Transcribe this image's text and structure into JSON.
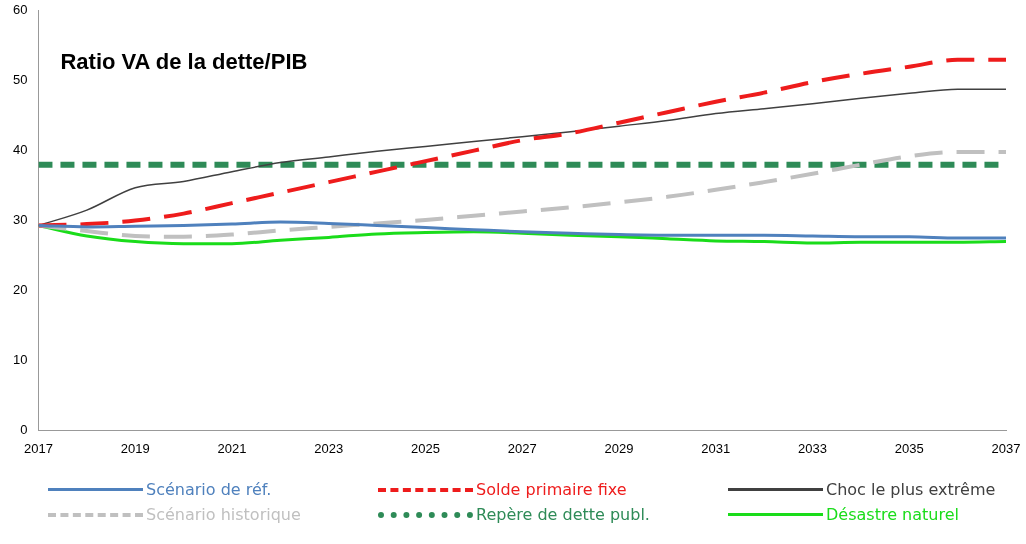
{
  "chart_data": {
    "type": "line",
    "title": "Ratio VA de la dette/PIB",
    "x": [
      2017,
      2018,
      2019,
      2020,
      2021,
      2022,
      2023,
      2024,
      2025,
      2026,
      2027,
      2028,
      2029,
      2030,
      2031,
      2032,
      2033,
      2034,
      2035,
      2036,
      2037
    ],
    "series": [
      {
        "name": "Scénario de réf.",
        "color": "#4f81bd",
        "line_style": "solid",
        "values": [
          29.3,
          29.1,
          29.2,
          29.3,
          29.5,
          29.8,
          29.6,
          29.3,
          29.0,
          28.7,
          28.4,
          28.2,
          28.0,
          27.9,
          27.9,
          27.9,
          27.8,
          27.7,
          27.7,
          27.5,
          27.5
        ]
      },
      {
        "name": "Solde primaire fixe",
        "color": "#ee1c1c",
        "line_style": "dashed",
        "values": [
          29.3,
          29.5,
          30.0,
          31.0,
          32.5,
          34.0,
          35.5,
          37.0,
          38.5,
          40.0,
          41.5,
          42.5,
          44.0,
          45.5,
          47.0,
          48.3,
          49.8,
          51.0,
          52.0,
          53.0,
          53.0
        ]
      },
      {
        "name": "Choc le plus extrême",
        "color": "#404040",
        "line_style": "solid",
        "values": [
          29.3,
          31.5,
          34.7,
          35.6,
          37.0,
          38.3,
          39.1,
          39.9,
          40.6,
          41.3,
          42.0,
          42.7,
          43.5,
          44.3,
          45.3,
          46.0,
          46.7,
          47.5,
          48.2,
          48.8,
          48.8
        ]
      },
      {
        "name": "Scénario historique",
        "color": "#c0c0c0",
        "line_style": "dashed",
        "values": [
          29.3,
          28.5,
          27.8,
          27.7,
          28.0,
          28.6,
          29.1,
          29.6,
          30.1,
          30.7,
          31.3,
          31.9,
          32.6,
          33.4,
          34.4,
          35.5,
          36.7,
          38.0,
          39.2,
          39.8,
          39.8
        ]
      },
      {
        "name": "Repère de dette publ.",
        "color": "#2e8b57",
        "line_style": "dotted",
        "values": [
          38,
          38,
          38,
          38,
          38,
          38,
          38,
          38,
          38,
          38,
          38,
          38,
          38,
          38,
          38,
          38,
          38,
          38,
          38,
          38,
          38
        ]
      },
      {
        "name": "Désastre naturel",
        "color": "#1adc1a",
        "line_style": "solid",
        "values": [
          29.3,
          27.8,
          27.0,
          26.7,
          26.7,
          27.2,
          27.6,
          28.1,
          28.3,
          28.4,
          28.2,
          27.9,
          27.7,
          27.4,
          27.1,
          27.0,
          26.8,
          26.9,
          26.9,
          26.9,
          27.0
        ]
      }
    ],
    "xlim": [
      2017,
      2037
    ],
    "xticks": [
      2017,
      2019,
      2021,
      2023,
      2025,
      2027,
      2029,
      2031,
      2033,
      2035,
      2037
    ],
    "ylim": [
      0,
      60
    ],
    "yticks": [
      0,
      10,
      20,
      30,
      40,
      50,
      60
    ],
    "grid": false,
    "legend": "bottom",
    "marker": "none"
  }
}
